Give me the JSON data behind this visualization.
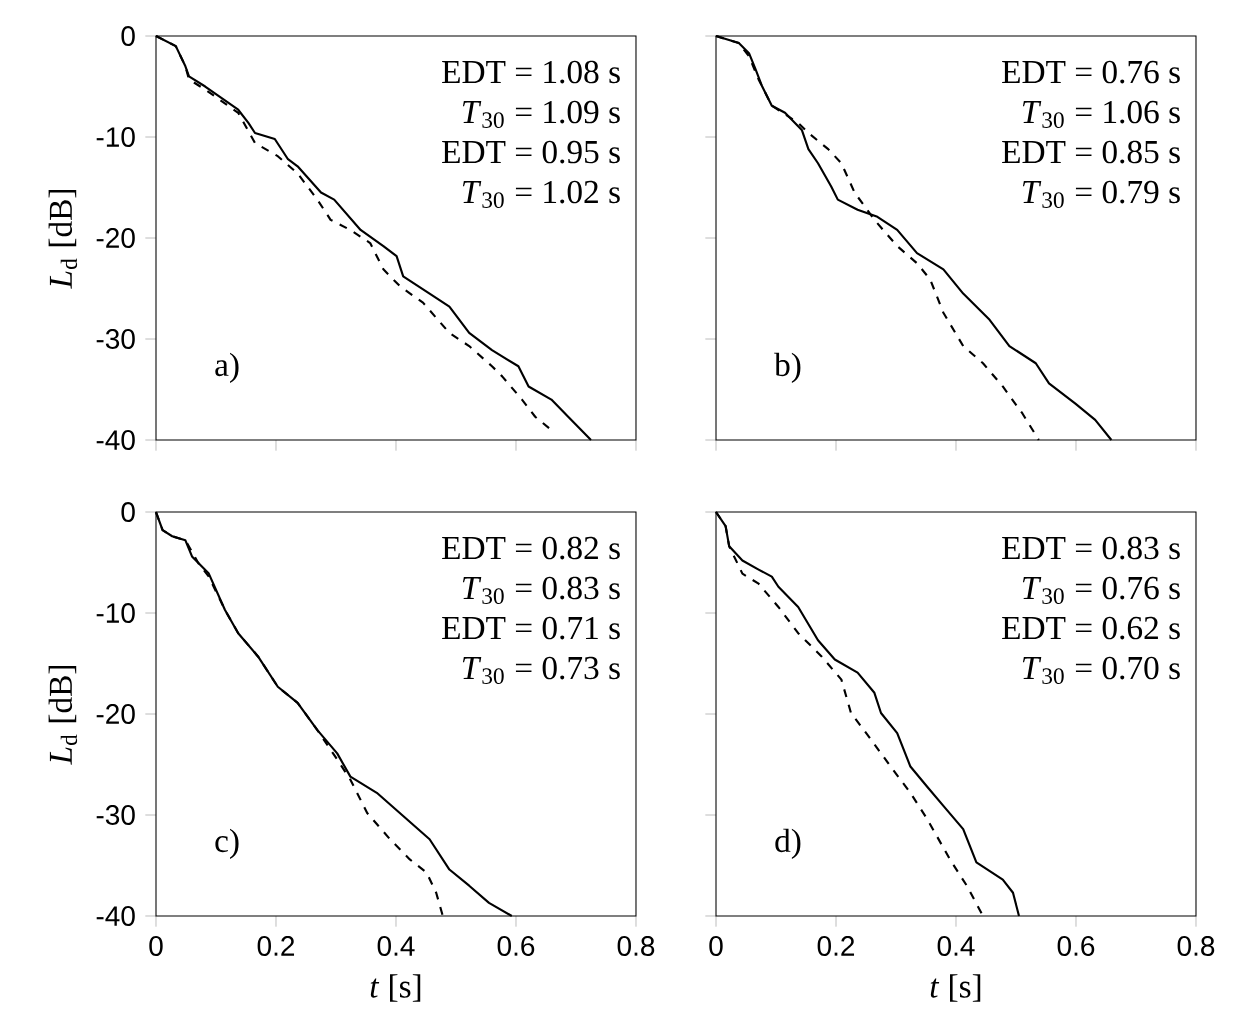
{
  "chart_data": [
    {
      "type": "line",
      "ylabel": "*L*$_{d}$ [dB]",
      "xlim": [
        0,
        0.8
      ],
      "ylim": [
        -40,
        0
      ],
      "xticks": [
        0,
        0.2,
        0.4,
        0.6,
        0.8
      ],
      "yticks": [
        0,
        -10,
        -20,
        -30,
        -40
      ],
      "tick_labels": "y",
      "annotations": [
        "EDT = 1.08 s",
        "*T*$_{30}$ = 1.09 s",
        "EDT = 0.95 s",
        "*T*$_{30}$ = 1.02 s",
        "a)"
      ],
      "series": [
        {
          "color": "#000000",
          "line_style": "solid",
          "x": [
            0,
            0.033,
            0.049,
            0.055,
            0.082,
            0.137,
            0.154,
            0.165,
            0.198,
            0.22,
            0.236,
            0.275,
            0.297,
            0.341,
            0.379,
            0.401,
            0.412,
            0.456,
            0.489,
            0.522,
            0.56,
            0.604,
            0.621,
            0.659,
            0.687,
            0.725
          ],
          "values": [
            0,
            -1.0,
            -3.0,
            -4.0,
            -5.0,
            -7.3,
            -8.6,
            -9.6,
            -10.2,
            -12.2,
            -12.9,
            -15.5,
            -16.2,
            -19.2,
            -20.8,
            -21.8,
            -23.8,
            -25.5,
            -26.8,
            -29.4,
            -31.1,
            -32.7,
            -34.7,
            -36.0,
            -37.7,
            -40
          ]
        },
        {
          "color": "#000000",
          "line_style": "dashed",
          "x": [
            0,
            0.033,
            0.049,
            0.055,
            0.082,
            0.137,
            0.165,
            0.203,
            0.236,
            0.269,
            0.291,
            0.324,
            0.357,
            0.379,
            0.407,
            0.445,
            0.489,
            0.522,
            0.56,
            0.577,
            0.61,
            0.632,
            0.665
          ],
          "values": [
            0,
            -1.0,
            -3.0,
            -4.3,
            -5.3,
            -7.6,
            -10.6,
            -11.9,
            -13.6,
            -16.2,
            -18.2,
            -19.2,
            -20.5,
            -23.1,
            -24.8,
            -26.4,
            -29.4,
            -30.7,
            -32.7,
            -33.7,
            -36.0,
            -37.7,
            -39.3
          ]
        }
      ]
    },
    {
      "type": "line",
      "xlim": [
        0,
        0.8
      ],
      "ylim": [
        -40,
        0
      ],
      "xticks": [
        0,
        0.2,
        0.4,
        0.6,
        0.8
      ],
      "yticks": [
        0,
        -10,
        -20,
        -30,
        -40
      ],
      "tick_labels": false,
      "annotations": [
        "EDT = 0.76 s",
        "*T*$_{30}$ = 1.06 s",
        "EDT = 0.85 s",
        "*T*$_{30}$ = 0.79 s",
        "b)"
      ],
      "series": [
        {
          "color": "#000000",
          "line_style": "solid",
          "x": [
            0,
            0.038,
            0.055,
            0.066,
            0.077,
            0.093,
            0.115,
            0.143,
            0.154,
            0.17,
            0.192,
            0.203,
            0.236,
            0.269,
            0.302,
            0.335,
            0.379,
            0.412,
            0.456,
            0.489,
            0.533,
            0.555,
            0.599,
            0.632,
            0.659
          ],
          "values": [
            0,
            -0.7,
            -1.7,
            -3.3,
            -5.0,
            -6.9,
            -7.6,
            -9.3,
            -11.2,
            -12.6,
            -14.9,
            -16.2,
            -17.2,
            -17.9,
            -19.2,
            -21.5,
            -23.1,
            -25.5,
            -28.1,
            -30.7,
            -32.4,
            -34.4,
            -36.4,
            -38.0,
            -40
          ]
        },
        {
          "color": "#000000",
          "line_style": "dashed",
          "x": [
            0,
            0.038,
            0.055,
            0.071,
            0.093,
            0.137,
            0.154,
            0.187,
            0.209,
            0.231,
            0.264,
            0.302,
            0.335,
            0.357,
            0.379,
            0.412,
            0.445,
            0.478,
            0.511,
            0.538
          ],
          "values": [
            0,
            -0.7,
            -2.0,
            -4.3,
            -6.9,
            -8.6,
            -9.6,
            -11.2,
            -12.6,
            -15.5,
            -18.2,
            -20.8,
            -22.5,
            -24.1,
            -27.4,
            -30.7,
            -32.4,
            -34.7,
            -37.4,
            -40
          ]
        }
      ]
    },
    {
      "type": "line",
      "xlabel": "*t* [s]",
      "ylabel": "*L*$_{d}$ [dB]",
      "xlim": [
        0,
        0.8
      ],
      "ylim": [
        -40,
        0
      ],
      "xticks": [
        0,
        0.2,
        0.4,
        0.6,
        0.8
      ],
      "yticks": [
        0,
        -10,
        -20,
        -30,
        -40
      ],
      "annotations": [
        "EDT = 0.82 s",
        "*T*$_{30}$ = 0.83 s",
        "EDT = 0.71 s",
        "*T*$_{30}$ = 0.73 s",
        "c)"
      ],
      "series": [
        {
          "color": "#000000",
          "line_style": "solid",
          "x": [
            0,
            0.011,
            0.027,
            0.049,
            0.06,
            0.088,
            0.115,
            0.137,
            0.17,
            0.203,
            0.236,
            0.269,
            0.302,
            0.324,
            0.368,
            0.412,
            0.456,
            0.489,
            0.522,
            0.555,
            0.593
          ],
          "values": [
            0,
            -1.8,
            -2.4,
            -2.8,
            -4.4,
            -6.1,
            -9.7,
            -12.0,
            -14.3,
            -17.3,
            -18.9,
            -21.6,
            -23.9,
            -26.2,
            -27.8,
            -30.1,
            -32.4,
            -35.4,
            -37.0,
            -38.7,
            -40
          ]
        },
        {
          "color": "#000000",
          "line_style": "dashed",
          "x": [
            0,
            0.011,
            0.027,
            0.049,
            0.071,
            0.088,
            0.115,
            0.137,
            0.17,
            0.203,
            0.236,
            0.269,
            0.302,
            0.324,
            0.352,
            0.39,
            0.423,
            0.451,
            0.467,
            0.478
          ],
          "values": [
            0,
            -1.8,
            -2.4,
            -2.8,
            -5.1,
            -6.4,
            -9.7,
            -12.0,
            -14.3,
            -17.3,
            -18.9,
            -21.6,
            -24.5,
            -26.5,
            -29.8,
            -32.4,
            -34.4,
            -35.7,
            -37.7,
            -40
          ]
        }
      ]
    },
    {
      "type": "line",
      "xlabel": "*t* [s]",
      "xlim": [
        0,
        0.8
      ],
      "ylim": [
        -40,
        0
      ],
      "xticks": [
        0,
        0.2,
        0.4,
        0.6,
        0.8
      ],
      "yticks": [
        0,
        -10,
        -20,
        -30,
        -40
      ],
      "tick_labels": "x",
      "annotations": [
        "EDT = 0.83 s",
        "*T*$_{30}$ = 0.76 s",
        "EDT = 0.62 s",
        "*T*$_{30}$ = 0.70 s",
        "d)"
      ],
      "series": [
        {
          "color": "#000000",
          "line_style": "solid",
          "x": [
            0,
            0.016,
            0.022,
            0.044,
            0.071,
            0.093,
            0.104,
            0.137,
            0.17,
            0.198,
            0.236,
            0.264,
            0.275,
            0.302,
            0.324,
            0.352,
            0.379,
            0.412,
            0.434,
            0.478,
            0.495,
            0.505
          ],
          "values": [
            0,
            -1.4,
            -3.4,
            -4.8,
            -5.7,
            -6.4,
            -7.4,
            -9.4,
            -12.7,
            -14.6,
            -15.9,
            -17.9,
            -19.9,
            -21.9,
            -25.2,
            -27.2,
            -29.1,
            -31.4,
            -34.7,
            -36.4,
            -37.7,
            -40
          ]
        },
        {
          "color": "#000000",
          "line_style": "dashed",
          "x": [
            0,
            0.016,
            0.022,
            0.044,
            0.071,
            0.104,
            0.137,
            0.176,
            0.209,
            0.225,
            0.258,
            0.291,
            0.324,
            0.352,
            0.39,
            0.418,
            0.445
          ],
          "values": [
            0,
            -1.4,
            -3.4,
            -6.1,
            -7.1,
            -9.4,
            -12.0,
            -14.3,
            -16.6,
            -19.9,
            -22.5,
            -25.2,
            -27.8,
            -30.4,
            -34.4,
            -37.0,
            -40
          ]
        }
      ]
    }
  ]
}
